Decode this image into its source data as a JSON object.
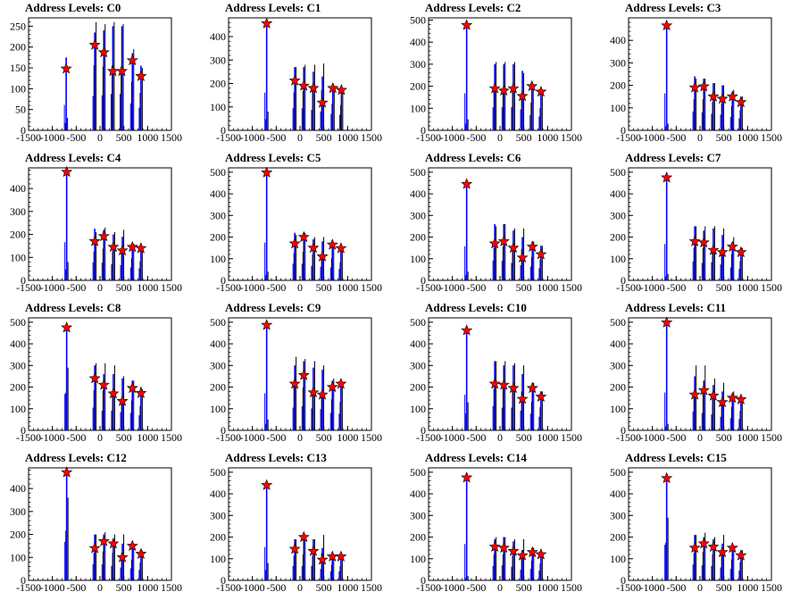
{
  "figure": {
    "title_prefix": "Address Levels: "
  },
  "chart_data": [
    {
      "type": "bar",
      "title": "Address Levels: C0",
      "xlim": [
        -1500,
        1500
      ],
      "ylim": [
        0,
        270
      ],
      "yticks": [
        0,
        50,
        100,
        150,
        200,
        250
      ],
      "xticks": [
        -1500,
        -1000,
        -500,
        0,
        500,
        1000,
        1500
      ],
      "peak_x": [
        -710,
        -110,
        80,
        270,
        460,
        680,
        860
      ],
      "blue_peaks": [
        175,
        235,
        240,
        250,
        250,
        185,
        155
      ],
      "black_peaks": [
        30,
        260,
        255,
        260,
        255,
        195,
        150
      ],
      "markers": [
        148,
        205,
        187,
        142,
        142,
        168,
        130
      ],
      "marker_color": "#ff0000",
      "bar_color": "#0000ff",
      "overlay_color": "#000000"
    },
    {
      "type": "bar",
      "title": "Address Levels: C1",
      "xlim": [
        -1500,
        1500
      ],
      "ylim": [
        0,
        480
      ],
      "yticks": [
        0,
        100,
        200,
        300,
        400
      ],
      "xticks": [
        -1500,
        -1000,
        -500,
        0,
        500,
        1000,
        1500
      ],
      "peak_x": [
        -700,
        -110,
        80,
        280,
        470,
        690,
        870
      ],
      "blue_peaks": [
        460,
        270,
        270,
        250,
        230,
        200,
        190
      ],
      "black_peaks": [
        80,
        270,
        280,
        280,
        285,
        190,
        180
      ],
      "markers": [
        456,
        212,
        190,
        180,
        118,
        180,
        172
      ],
      "marker_color": "#ff0000",
      "bar_color": "#0000ff",
      "overlay_color": "#000000"
    },
    {
      "type": "bar",
      "title": "Address Levels: C2",
      "xlim": [
        -1500,
        1500
      ],
      "ylim": [
        0,
        510
      ],
      "yticks": [
        0,
        100,
        200,
        300,
        400,
        500
      ],
      "xticks": [
        -1500,
        -1000,
        -500,
        0,
        500,
        1000,
        1500
      ],
      "peak_x": [
        -700,
        -110,
        80,
        280,
        470,
        670,
        860
      ],
      "blue_peaks": [
        480,
        300,
        300,
        300,
        270,
        200,
        180
      ],
      "black_peaks": [
        50,
        310,
        310,
        310,
        260,
        210,
        170
      ],
      "markers": [
        477,
        190,
        180,
        190,
        155,
        200,
        175
      ],
      "marker_color": "#ff0000",
      "bar_color": "#0000ff",
      "overlay_color": "#000000"
    },
    {
      "type": "bar",
      "title": "Address Levels: C3",
      "xlim": [
        -1500,
        1500
      ],
      "ylim": [
        0,
        500
      ],
      "yticks": [
        0,
        100,
        200,
        300,
        400
      ],
      "xticks": [
        -1500,
        -1000,
        -500,
        0,
        500,
        1000,
        1500
      ],
      "peak_x": [
        -700,
        -110,
        80,
        280,
        470,
        680,
        860
      ],
      "blue_peaks": [
        470,
        240,
        230,
        210,
        200,
        170,
        150
      ],
      "black_peaks": [
        30,
        230,
        230,
        210,
        200,
        180,
        150
      ],
      "markers": [
        466,
        190,
        195,
        150,
        140,
        150,
        125
      ],
      "marker_color": "#ff0000",
      "bar_color": "#0000ff",
      "overlay_color": "#000000"
    },
    {
      "type": "bar",
      "title": "Address Levels: C4",
      "xlim": [
        -1500,
        1500
      ],
      "ylim": [
        0,
        490
      ],
      "yticks": [
        0,
        100,
        200,
        300,
        400
      ],
      "xticks": [
        -1500,
        -1000,
        -500,
        0,
        500,
        1000,
        1500
      ],
      "peak_x": [
        -700,
        -110,
        80,
        280,
        470,
        680,
        860
      ],
      "blue_peaks": [
        475,
        225,
        220,
        200,
        190,
        160,
        150
      ],
      "black_peaks": [
        80,
        210,
        230,
        210,
        220,
        160,
        140
      ],
      "markers": [
        472,
        170,
        192,
        145,
        130,
        145,
        140
      ],
      "marker_color": "#ff0000",
      "bar_color": "#0000ff",
      "overlay_color": "#000000"
    },
    {
      "type": "bar",
      "title": "Address Levels: C5",
      "xlim": [
        -1500,
        1500
      ],
      "ylim": [
        0,
        520
      ],
      "yticks": [
        0,
        100,
        200,
        300,
        400,
        500
      ],
      "xticks": [
        -1500,
        -1000,
        -500,
        0,
        500,
        1000,
        1500
      ],
      "peak_x": [
        -700,
        -110,
        80,
        280,
        470,
        680,
        860
      ],
      "blue_peaks": [
        500,
        220,
        220,
        190,
        180,
        170,
        150
      ],
      "black_peaks": [
        40,
        210,
        220,
        200,
        200,
        170,
        140
      ],
      "markers": [
        498,
        170,
        200,
        150,
        110,
        165,
        148
      ],
      "marker_color": "#ff0000",
      "bar_color": "#0000ff",
      "overlay_color": "#000000"
    },
    {
      "type": "bar",
      "title": "Address Levels: C6",
      "xlim": [
        -1500,
        1500
      ],
      "ylim": [
        0,
        520
      ],
      "yticks": [
        0,
        100,
        200,
        300,
        400,
        500
      ],
      "xticks": [
        -1500,
        -1000,
        -500,
        0,
        500,
        1000,
        1500
      ],
      "peak_x": [
        -700,
        -110,
        80,
        280,
        470,
        680,
        860
      ],
      "blue_peaks": [
        450,
        260,
        260,
        230,
        200,
        180,
        160
      ],
      "black_peaks": [
        40,
        250,
        260,
        240,
        240,
        180,
        160
      ],
      "markers": [
        445,
        170,
        180,
        150,
        105,
        155,
        120
      ],
      "marker_color": "#ff0000",
      "bar_color": "#0000ff",
      "overlay_color": "#000000"
    },
    {
      "type": "bar",
      "title": "Address Levels: C7",
      "xlim": [
        -1500,
        1500
      ],
      "ylim": [
        0,
        520
      ],
      "yticks": [
        0,
        100,
        200,
        300,
        400,
        500
      ],
      "xticks": [
        -1500,
        -1000,
        -500,
        0,
        500,
        1000,
        1500
      ],
      "peak_x": [
        -700,
        -110,
        80,
        280,
        470,
        680,
        860
      ],
      "blue_peaks": [
        480,
        250,
        230,
        240,
        210,
        170,
        150
      ],
      "black_peaks": [
        30,
        250,
        250,
        250,
        240,
        200,
        150
      ],
      "markers": [
        475,
        180,
        175,
        140,
        130,
        155,
        130
      ],
      "marker_color": "#ff0000",
      "bar_color": "#0000ff",
      "overlay_color": "#000000"
    },
    {
      "type": "bar",
      "title": "Address Levels: C8",
      "xlim": [
        -1500,
        1500
      ],
      "ylim": [
        0,
        520
      ],
      "yticks": [
        0,
        100,
        200,
        300,
        400,
        500
      ],
      "xticks": [
        -1500,
        -1000,
        -500,
        0,
        500,
        1000,
        1500
      ],
      "peak_x": [
        -700,
        -110,
        80,
        280,
        470,
        680,
        860
      ],
      "blue_peaks": [
        480,
        300,
        260,
        260,
        240,
        230,
        200
      ],
      "black_peaks": [
        290,
        310,
        310,
        300,
        250,
        230,
        190
      ],
      "markers": [
        475,
        240,
        210,
        170,
        135,
        195,
        172
      ],
      "marker_color": "#ff0000",
      "bar_color": "#0000ff",
      "overlay_color": "#000000"
    },
    {
      "type": "bar",
      "title": "Address Levels: C9",
      "xlim": [
        -1500,
        1500
      ],
      "ylim": [
        0,
        520
      ],
      "yticks": [
        0,
        100,
        200,
        300,
        400,
        500
      ],
      "xticks": [
        -1500,
        -1000,
        -500,
        0,
        500,
        1000,
        1500
      ],
      "peak_x": [
        -700,
        -110,
        80,
        280,
        470,
        680,
        860
      ],
      "blue_peaks": [
        490,
        300,
        320,
        290,
        280,
        230,
        220
      ],
      "black_peaks": [
        50,
        340,
        330,
        320,
        300,
        240,
        220
      ],
      "markers": [
        487,
        215,
        255,
        175,
        165,
        200,
        215
      ],
      "marker_color": "#ff0000",
      "bar_color": "#0000ff",
      "overlay_color": "#000000"
    },
    {
      "type": "bar",
      "title": "Address Levels: C10",
      "xlim": [
        -1500,
        1500
      ],
      "ylim": [
        0,
        520
      ],
      "yticks": [
        0,
        100,
        200,
        300,
        400,
        500
      ],
      "xticks": [
        -1500,
        -1000,
        -500,
        0,
        500,
        1000,
        1500
      ],
      "peak_x": [
        -700,
        -110,
        80,
        280,
        470,
        680,
        860
      ],
      "blue_peaks": [
        470,
        320,
        300,
        300,
        260,
        220,
        180
      ],
      "black_peaks": [
        130,
        320,
        320,
        310,
        300,
        220,
        180
      ],
      "markers": [
        462,
        215,
        210,
        195,
        145,
        195,
        155
      ],
      "marker_color": "#ff0000",
      "bar_color": "#0000ff",
      "overlay_color": "#000000"
    },
    {
      "type": "bar",
      "title": "Address Levels: C11",
      "xlim": [
        -1500,
        1500
      ],
      "ylim": [
        0,
        520
      ],
      "yticks": [
        0,
        100,
        200,
        300,
        400,
        500
      ],
      "xticks": [
        -1500,
        -1000,
        -500,
        0,
        500,
        1000,
        1500
      ],
      "peak_x": [
        -700,
        -110,
        80,
        280,
        470,
        680,
        860
      ],
      "blue_peaks": [
        500,
        250,
        230,
        210,
        180,
        160,
        150
      ],
      "black_peaks": [
        30,
        300,
        300,
        240,
        220,
        180,
        150
      ],
      "markers": [
        498,
        165,
        185,
        160,
        130,
        150,
        143
      ],
      "marker_color": "#ff0000",
      "bar_color": "#0000ff",
      "overlay_color": "#000000"
    },
    {
      "type": "bar",
      "title": "Address Levels: C12",
      "xlim": [
        -1500,
        1500
      ],
      "ylim": [
        0,
        490
      ],
      "yticks": [
        0,
        100,
        200,
        300,
        400
      ],
      "xticks": [
        -1500,
        -1000,
        -500,
        0,
        500,
        1000,
        1500
      ],
      "peak_x": [
        -700,
        -110,
        80,
        280,
        470,
        680,
        860
      ],
      "blue_peaks": [
        480,
        200,
        200,
        180,
        160,
        150,
        130
      ],
      "black_peaks": [
        360,
        200,
        210,
        200,
        200,
        150,
        130
      ],
      "markers": [
        470,
        140,
        170,
        160,
        100,
        150,
        115
      ],
      "marker_color": "#ff0000",
      "bar_color": "#0000ff",
      "overlay_color": "#000000"
    },
    {
      "type": "bar",
      "title": "Address Levels: C13",
      "xlim": [
        -1500,
        1500
      ],
      "ylim": [
        0,
        520
      ],
      "yticks": [
        0,
        100,
        200,
        300,
        400,
        500
      ],
      "xticks": [
        -1500,
        -1000,
        -500,
        0,
        500,
        1000,
        1500
      ],
      "peak_x": [
        -700,
        -110,
        80,
        280,
        470,
        680,
        860
      ],
      "blue_peaks": [
        440,
        190,
        190,
        190,
        150,
        120,
        120
      ],
      "black_peaks": [
        80,
        190,
        200,
        190,
        210,
        120,
        110
      ],
      "markers": [
        440,
        145,
        200,
        135,
        95,
        110,
        110
      ],
      "marker_color": "#ff0000",
      "bar_color": "#0000ff",
      "overlay_color": "#000000"
    },
    {
      "type": "bar",
      "title": "Address Levels: C14",
      "xlim": [
        -1500,
        1500
      ],
      "ylim": [
        0,
        520
      ],
      "yticks": [
        0,
        100,
        200,
        300,
        400,
        500
      ],
      "xticks": [
        -1500,
        -1000,
        -500,
        0,
        500,
        1000,
        1500
      ],
      "peak_x": [
        -700,
        -110,
        80,
        280,
        470,
        680,
        860
      ],
      "blue_peaks": [
        480,
        190,
        200,
        180,
        140,
        150,
        130
      ],
      "black_peaks": [
        20,
        200,
        200,
        190,
        190,
        150,
        130
      ],
      "markers": [
        475,
        155,
        150,
        135,
        115,
        130,
        120
      ],
      "marker_color": "#ff0000",
      "bar_color": "#0000ff",
      "overlay_color": "#000000"
    },
    {
      "type": "bar",
      "title": "Address Levels: C15",
      "xlim": [
        -1500,
        1500
      ],
      "ylim": [
        0,
        520
      ],
      "yticks": [
        0,
        100,
        200,
        300,
        400,
        500
      ],
      "xticks": [
        -1500,
        -1000,
        -500,
        0,
        500,
        1000,
        1500
      ],
      "peak_x": [
        -700,
        -110,
        80,
        280,
        470,
        680,
        860
      ],
      "blue_peaks": [
        470,
        210,
        200,
        190,
        170,
        150,
        130
      ],
      "black_peaks": [
        290,
        210,
        220,
        200,
        210,
        160,
        140
      ],
      "markers": [
        472,
        150,
        170,
        155,
        130,
        150,
        115
      ],
      "marker_color": "#ff0000",
      "bar_color": "#0000ff",
      "overlay_color": "#000000"
    }
  ]
}
